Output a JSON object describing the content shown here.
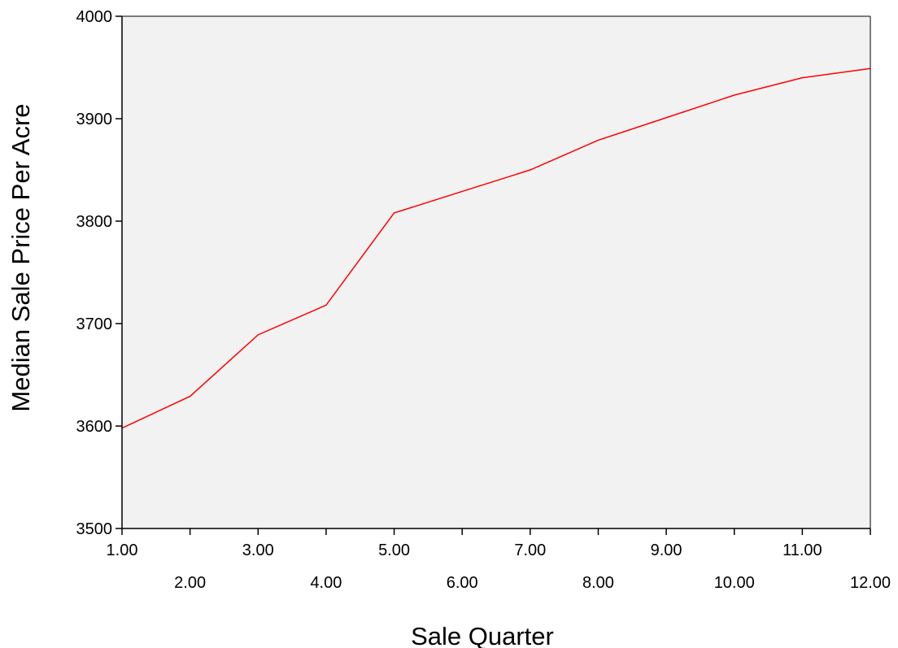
{
  "chart_data": {
    "type": "line",
    "title": "",
    "xlabel": "Sale Quarter",
    "ylabel": "Median Sale Price Per Acre",
    "x": [
      1,
      2,
      3,
      4,
      5,
      6,
      7,
      8,
      9,
      10,
      11,
      12
    ],
    "x_tick_labels": [
      "1.00",
      "2.00",
      "3.00",
      "4.00",
      "5.00",
      "6.00",
      "7.00",
      "8.00",
      "9.00",
      "10.00",
      "11.00",
      "12.00"
    ],
    "y_ticks": [
      3500,
      3600,
      3700,
      3800,
      3900,
      4000
    ],
    "y_tick_labels": [
      "3500",
      "3600",
      "3700",
      "3800",
      "3900",
      "4000"
    ],
    "xlim": [
      1,
      12
    ],
    "ylim": [
      3500,
      4000
    ],
    "series": [
      {
        "values": [
          3598,
          3629,
          3689,
          3718,
          3808,
          3829,
          3850,
          3879,
          3901,
          3923,
          3940,
          3949
        ]
      }
    ],
    "grid": false,
    "colors": {
      "line": "#ff0000",
      "plot_background": "#f2f2f2",
      "axis": "#000000"
    }
  }
}
